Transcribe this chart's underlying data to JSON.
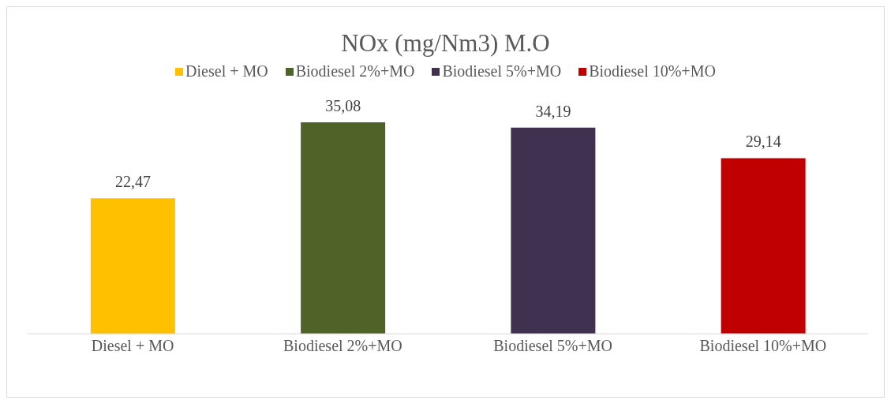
{
  "chart_data": {
    "type": "bar",
    "title": "NOx (mg/Nm3) M.O",
    "categories": [
      "Diesel + MO",
      "Biodiesel 2%+MO",
      "Biodiesel 5%+MO",
      "Biodiesel 10%+MO"
    ],
    "stacked": true,
    "legend": "top",
    "tick_labels": "x",
    "series": [
      {
        "name": "Diesel + MO",
        "color": "#ffc000",
        "values": [
          22.47,
          null,
          null,
          null
        ],
        "value_labels": [
          "22,47",
          null,
          null,
          null
        ]
      },
      {
        "name": "Biodiesel 2%+MO",
        "color": "#4f6228",
        "values": [
          null,
          35.08,
          null,
          null
        ],
        "value_labels": [
          null,
          "35,08",
          null,
          null
        ]
      },
      {
        "name": "Biodiesel 5%+MO",
        "color": "#403151",
        "values": [
          null,
          null,
          34.19,
          null
        ],
        "value_labels": [
          null,
          null,
          "34,19",
          null
        ]
      },
      {
        "name": "Biodiesel 10%+MO",
        "color": "#c00000",
        "values": [
          null,
          null,
          null,
          29.14
        ],
        "value_labels": [
          null,
          null,
          null,
          "29,14"
        ]
      }
    ]
  }
}
